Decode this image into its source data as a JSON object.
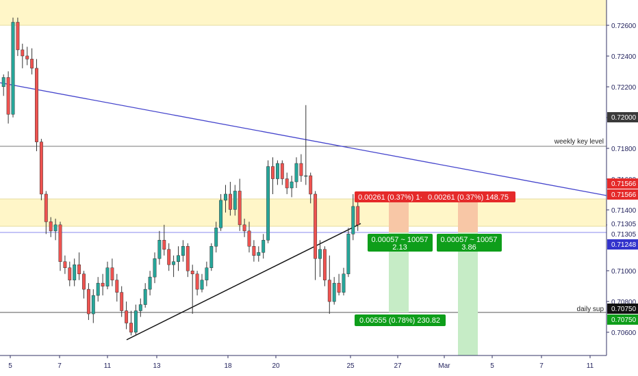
{
  "chart_data": {
    "type": "candlestick",
    "title": "",
    "ylim": [
      0.7047,
      0.7278
    ],
    "y_ticks": [
      "0.72600",
      "0.72400",
      "0.72200",
      "0.72000",
      "0.71800",
      "0.71600",
      "0.71400",
      "0.71300",
      "0.71000",
      "0.70800",
      "0.70600"
    ],
    "x_ticks": [
      "5",
      "7",
      "11",
      "13",
      "18",
      "20",
      "25",
      "27",
      "Mar",
      "5",
      "7",
      "11"
    ],
    "colors": {
      "up": "#26a69a",
      "down": "#ef5350",
      "wick": "#333333",
      "trend": "#4444cc",
      "zone": "#fff6c8",
      "loss": "#f8c7a6",
      "profit": "#c6ecc6",
      "red_label": "#e52a2a",
      "green_label": "#0e9e1a",
      "dark_label": "#3a3a3a",
      "blue_label": "#3333cc"
    },
    "candles": [
      [
        0.722,
        0.7228,
        0.7214,
        0.7226
      ],
      [
        0.7226,
        0.723,
        0.7196,
        0.7202
      ],
      [
        0.7202,
        0.7265,
        0.72,
        0.7262
      ],
      [
        0.7262,
        0.7265,
        0.724,
        0.7244
      ],
      [
        0.7244,
        0.7248,
        0.7232,
        0.724
      ],
      [
        0.724,
        0.7246,
        0.7234,
        0.7238
      ],
      [
        0.7238,
        0.7245,
        0.7228,
        0.7232
      ],
      [
        0.7232,
        0.7238,
        0.7178,
        0.7184
      ],
      [
        0.7184,
        0.7186,
        0.7146,
        0.715
      ],
      [
        0.715,
        0.7152,
        0.7124,
        0.7132
      ],
      [
        0.7132,
        0.7135,
        0.7122,
        0.7126
      ],
      [
        0.7126,
        0.7134,
        0.712,
        0.713
      ],
      [
        0.713,
        0.7132,
        0.71,
        0.7106
      ],
      [
        0.7106,
        0.711,
        0.7098,
        0.7102
      ],
      [
        0.7102,
        0.7106,
        0.709,
        0.7094
      ],
      [
        0.7094,
        0.7108,
        0.709,
        0.7104
      ],
      [
        0.7104,
        0.7112,
        0.7094,
        0.7098
      ],
      [
        0.7098,
        0.71,
        0.7082,
        0.7088
      ],
      [
        0.7088,
        0.7092,
        0.7068,
        0.7072
      ],
      [
        0.7072,
        0.7088,
        0.7066,
        0.7084
      ],
      [
        0.7084,
        0.7096,
        0.708,
        0.7092
      ],
      [
        0.7092,
        0.7098,
        0.7084,
        0.709
      ],
      [
        0.709,
        0.7106,
        0.7088,
        0.7102
      ],
      [
        0.7102,
        0.7108,
        0.709,
        0.7094
      ],
      [
        0.7094,
        0.7098,
        0.708,
        0.7086
      ],
      [
        0.7086,
        0.709,
        0.707,
        0.7074
      ],
      [
        0.7074,
        0.708,
        0.7062,
        0.7066
      ],
      [
        0.7066,
        0.7074,
        0.7058,
        0.706
      ],
      [
        0.706,
        0.7078,
        0.7058,
        0.7074
      ],
      [
        0.7074,
        0.7082,
        0.707,
        0.7078
      ],
      [
        0.7078,
        0.7092,
        0.7076,
        0.7088
      ],
      [
        0.7088,
        0.71,
        0.7084,
        0.7096
      ],
      [
        0.7096,
        0.7112,
        0.7092,
        0.7108
      ],
      [
        0.7108,
        0.7126,
        0.7104,
        0.712
      ],
      [
        0.712,
        0.713,
        0.711,
        0.7114
      ],
      [
        0.7114,
        0.7118,
        0.71,
        0.7104
      ],
      [
        0.7104,
        0.711,
        0.7096,
        0.7106
      ],
      [
        0.7106,
        0.7116,
        0.71,
        0.711
      ],
      [
        0.711,
        0.712,
        0.7106,
        0.7116
      ],
      [
        0.7116,
        0.7118,
        0.7096,
        0.71
      ],
      [
        0.71,
        0.7104,
        0.7072,
        0.7098
      ],
      [
        0.7098,
        0.71,
        0.7084,
        0.7088
      ],
      [
        0.7088,
        0.7098,
        0.7086,
        0.7094
      ],
      [
        0.7094,
        0.7106,
        0.709,
        0.7102
      ],
      [
        0.7102,
        0.7118,
        0.71,
        0.7116
      ],
      [
        0.7116,
        0.7132,
        0.7112,
        0.7128
      ],
      [
        0.7128,
        0.715,
        0.7126,
        0.7146
      ],
      [
        0.7146,
        0.7156,
        0.7138,
        0.715
      ],
      [
        0.715,
        0.7158,
        0.7136,
        0.714
      ],
      [
        0.714,
        0.7156,
        0.7136,
        0.7152
      ],
      [
        0.7152,
        0.716,
        0.7126,
        0.713
      ],
      [
        0.713,
        0.7134,
        0.7122,
        0.7126
      ],
      [
        0.7126,
        0.7132,
        0.7112,
        0.7116
      ],
      [
        0.7116,
        0.712,
        0.7106,
        0.711
      ],
      [
        0.711,
        0.7116,
        0.7106,
        0.7112
      ],
      [
        0.7112,
        0.7124,
        0.7108,
        0.712
      ],
      [
        0.712,
        0.7172,
        0.7118,
        0.7168
      ],
      [
        0.7168,
        0.7174,
        0.715,
        0.716
      ],
      [
        0.716,
        0.7172,
        0.7156,
        0.717
      ],
      [
        0.717,
        0.7172,
        0.7156,
        0.716
      ],
      [
        0.716,
        0.7164,
        0.715,
        0.7154
      ],
      [
        0.7154,
        0.7162,
        0.7148,
        0.7158
      ],
      [
        0.7158,
        0.7174,
        0.7154,
        0.717
      ],
      [
        0.717,
        0.7176,
        0.7158,
        0.7162
      ],
      [
        0.7162,
        0.7208,
        0.7156,
        0.7162
      ],
      [
        0.7162,
        0.7164,
        0.7144,
        0.715
      ],
      [
        0.715,
        0.7152,
        0.7094,
        0.7108
      ],
      [
        0.7108,
        0.712,
        0.7096,
        0.7114
      ],
      [
        0.7114,
        0.7116,
        0.709,
        0.7094
      ],
      [
        0.7094,
        0.711,
        0.7072,
        0.708
      ],
      [
        0.708,
        0.7096,
        0.7078,
        0.7092
      ],
      [
        0.7092,
        0.7098,
        0.7084,
        0.7086
      ],
      [
        0.7086,
        0.7102,
        0.7084,
        0.7098
      ],
      [
        0.7098,
        0.7128,
        0.7096,
        0.7124
      ],
      [
        0.7124,
        0.715,
        0.712,
        0.7142
      ],
      [
        0.7142,
        0.7146,
        0.7126,
        0.713
      ]
    ],
    "zones": [
      [
        0.726,
        0.728
      ],
      [
        0.713,
        0.7148
      ]
    ],
    "lines": {
      "weekly_key_level": 0.71815,
      "daily_sup": 0.7075,
      "blue_h": 0.71248
    },
    "annotations": {
      "weekly": "weekly key level",
      "daily": "daily sup"
    },
    "price_labels": {
      "p72000": "0.72000",
      "p71566a": "0.71566",
      "p71566b": "0.71566",
      "p71305a": "0.71305",
      "p71305b": "0.71305",
      "p71248": "0.71248",
      "p70750a": "0.70750",
      "p70750b": "0.70750"
    },
    "trade_boxes": {
      "loss1": "0.00261 (0.37%) 1·",
      "loss2": "0.00261 (0.37%) 148.75",
      "target1_line1": "0.00057 ~ 10057",
      "target1_line2": "2.13",
      "target2_line1": "0.00057 ~ 10057",
      "target2_line2": "3.86",
      "profit": "0.00555 (0.78%) 230.82"
    }
  }
}
